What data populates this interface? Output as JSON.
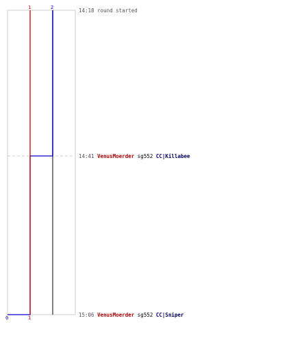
{
  "chart_data": {
    "type": "line",
    "title": "",
    "xlabel": "",
    "ylabel": "",
    "series": [
      {
        "color": "#0000cc",
        "values": [
          2,
          1,
          0
        ],
        "start_label": "2",
        "end_label": "0"
      },
      {
        "color": "#cc0000",
        "values": [
          1,
          1,
          1
        ],
        "start_label": "1",
        "end_label": "1"
      }
    ],
    "colors": {
      "blue_team": "#0000cc",
      "red_team": "#cc0000",
      "grid": "#cccccc",
      "mid_line": "#555555",
      "killer": "#aa0000",
      "victim": "#000066",
      "time": "#555555"
    },
    "events": [
      {
        "time": "14:18",
        "message": "round started",
        "killer": "",
        "weapon": "",
        "victim": ""
      },
      {
        "time": "14:41",
        "message": "",
        "killer": "VenusMoerder",
        "weapon": "sg552",
        "victim": "CC|Killabee"
      },
      {
        "time": "15:06",
        "message": "",
        "killer": "VenusMoerder",
        "weapon": "sg552",
        "victim": "CC|Sniper"
      }
    ]
  }
}
